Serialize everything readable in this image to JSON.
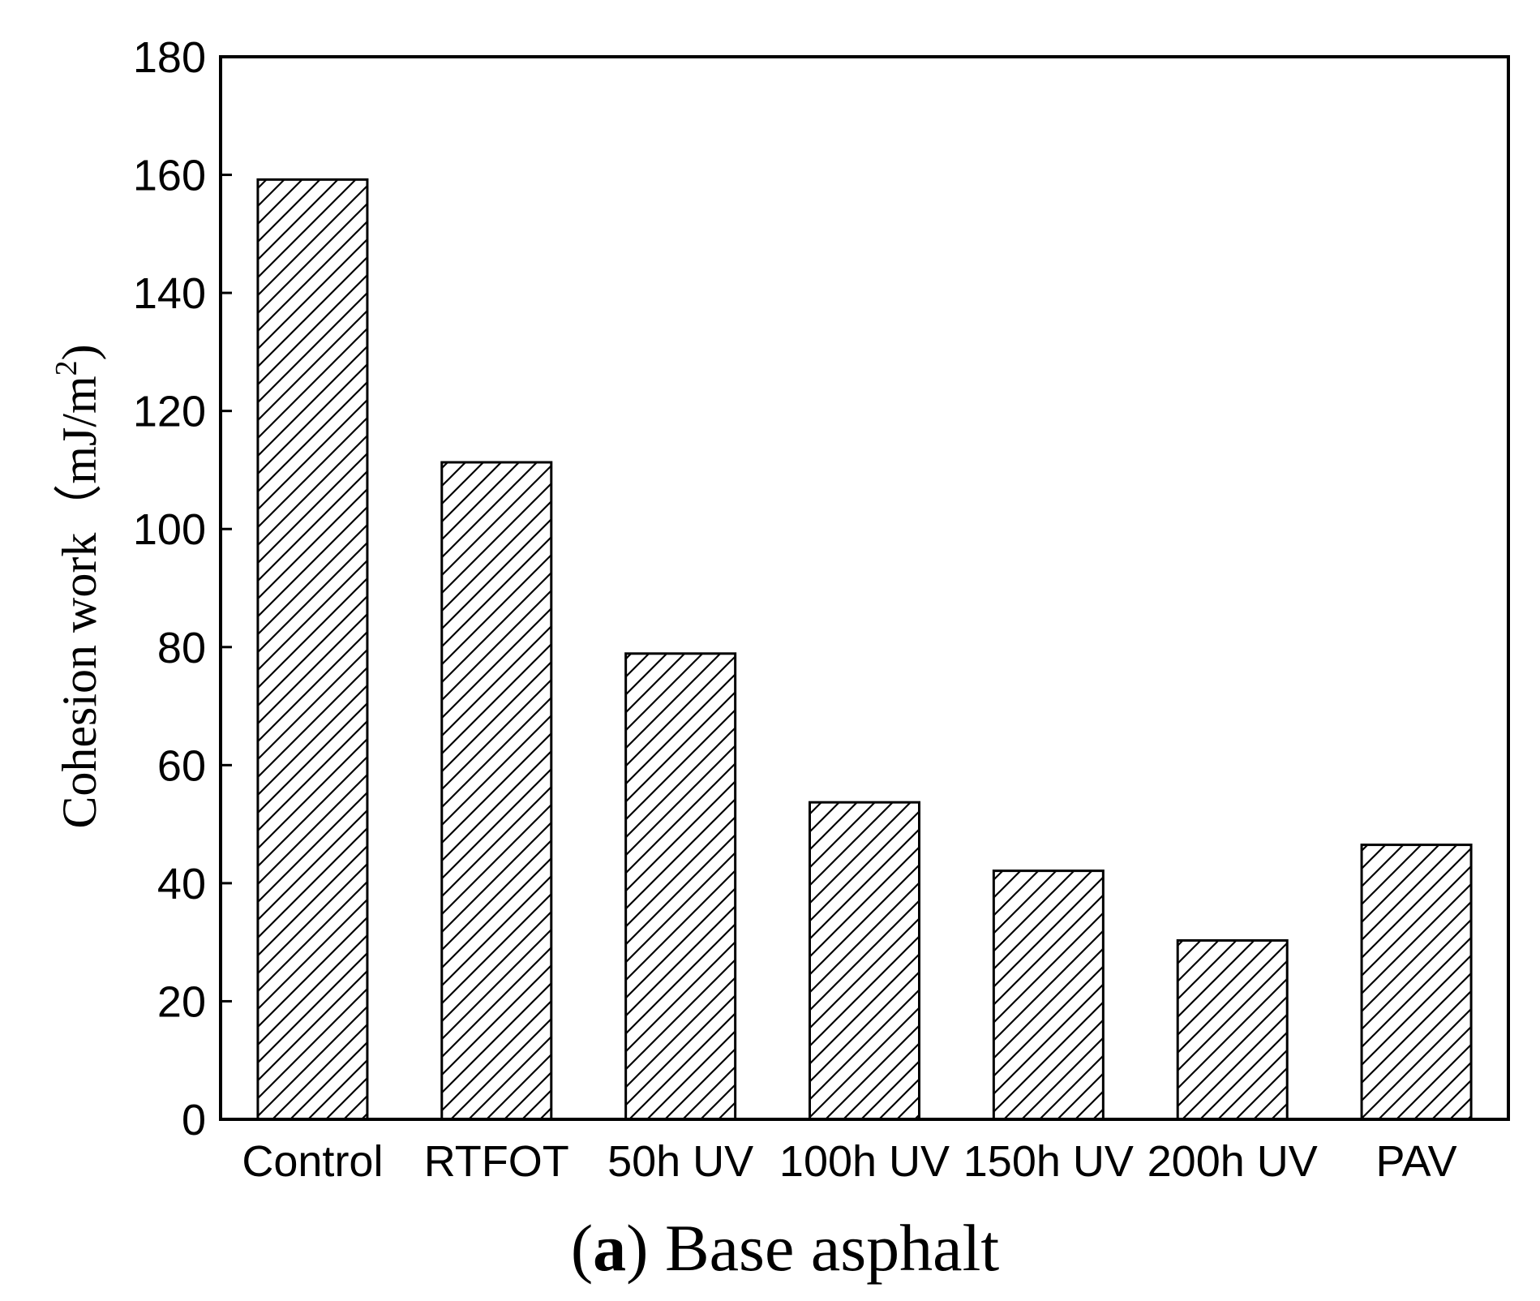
{
  "chart_data": {
    "type": "bar",
    "title": "",
    "caption": {
      "letter": "a",
      "text": "Base asphalt"
    },
    "xlabel": "",
    "ylabel": {
      "text": "Cohesion work（mJ/m",
      "superscript": "2",
      "closing": ")"
    },
    "ylim": [
      0,
      180
    ],
    "yticks": [
      0,
      20,
      40,
      60,
      80,
      100,
      120,
      140,
      160,
      180
    ],
    "categories": [
      "Control",
      "RTFOT",
      "50h UV",
      "100h UV",
      "150h UV",
      "200h UV",
      "PAV"
    ],
    "values": [
      159.2,
      111.3,
      78.9,
      53.7,
      42.1,
      30.3,
      46.5
    ],
    "bar_fill": "diagonal-hatch",
    "grid": false,
    "legend": "none",
    "colors": {
      "bar_stroke": "#000000",
      "hatch": "#000000",
      "background": "#ffffff"
    }
  }
}
